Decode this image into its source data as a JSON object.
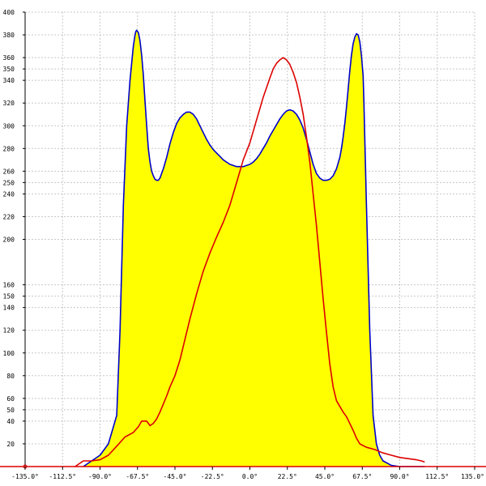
{
  "chart_data": {
    "type": "area",
    "title": "",
    "xlabel": "",
    "ylabel": "",
    "xlim": [
      -135,
      135
    ],
    "ylim": [
      0,
      400
    ],
    "grid": true,
    "legend": "none",
    "x_ticks": [
      {
        "value": -135,
        "label": "-135.0°"
      },
      {
        "value": -112.5,
        "label": "-112.5°"
      },
      {
        "value": -90,
        "label": "-90.0°"
      },
      {
        "value": -67.5,
        "label": "-67.5°"
      },
      {
        "value": -45,
        "label": "-45.0°"
      },
      {
        "value": -22.5,
        "label": "-22.5°"
      },
      {
        "value": 0,
        "label": "0.0°"
      },
      {
        "value": 22.5,
        "label": "22.5°"
      },
      {
        "value": 45,
        "label": "45.0°"
      },
      {
        "value": 67.5,
        "label": "67.5°"
      },
      {
        "value": 90,
        "label": "90.0°"
      },
      {
        "value": 112.5,
        "label": "112.5°"
      },
      {
        "value": 135,
        "label": "135.0°"
      }
    ],
    "y_ticks": [
      {
        "value": 20,
        "label": "20"
      },
      {
        "value": 40,
        "label": "40"
      },
      {
        "value": 50,
        "label": "50"
      },
      {
        "value": 60,
        "label": "60"
      },
      {
        "value": 80,
        "label": "80"
      },
      {
        "value": 100,
        "label": "100"
      },
      {
        "value": 120,
        "label": "120"
      },
      {
        "value": 140,
        "label": "140"
      },
      {
        "value": 150,
        "label": "150"
      },
      {
        "value": 160,
        "label": "160"
      },
      {
        "value": 200,
        "label": "200"
      },
      {
        "value": 220,
        "label": "220"
      },
      {
        "value": 240,
        "label": "240"
      },
      {
        "value": 250,
        "label": "250"
      },
      {
        "value": 260,
        "label": "260"
      },
      {
        "value": 280,
        "label": "280"
      },
      {
        "value": 300,
        "label": "300"
      },
      {
        "value": 320,
        "label": "320"
      },
      {
        "value": 340,
        "label": "340"
      },
      {
        "value": 350,
        "label": "350"
      },
      {
        "value": 360,
        "label": "360"
      },
      {
        "value": 380,
        "label": "380"
      },
      {
        "value": 400,
        "label": "400"
      }
    ],
    "series": [
      {
        "color": "#0000cc",
        "fill": "#ffff00",
        "x": [
          -100,
          -95,
          -90,
          -85,
          -80,
          -78,
          -76,
          -74,
          -72,
          -70,
          -69,
          -68.5,
          -68,
          -67,
          -66,
          -65,
          -64,
          -63,
          -62,
          -61,
          -60,
          -59,
          -58,
          -57,
          -56,
          -55,
          -54,
          -52,
          -50,
          -48,
          -46,
          -44,
          -42,
          -40,
          -38,
          -36,
          -34,
          -32,
          -30,
          -28,
          -26,
          -24,
          -22,
          -20,
          -18,
          -16,
          -14,
          -12,
          -10,
          -8,
          -6,
          -4,
          -2,
          0,
          2,
          4,
          6,
          8,
          10,
          12,
          14,
          16,
          18,
          20,
          22,
          24,
          26,
          28,
          30,
          32,
          34,
          36,
          38,
          40,
          42,
          44,
          46,
          48,
          50,
          52,
          54,
          55,
          56,
          57,
          58,
          59,
          60,
          61,
          62,
          63,
          64,
          65,
          66,
          67,
          68,
          68.5,
          69,
          70,
          72,
          74,
          76,
          78,
          80,
          85,
          90,
          95,
          100,
          105
        ],
        "y": [
          0,
          5,
          10,
          20,
          45,
          120,
          230,
          300,
          340,
          370,
          380,
          383,
          384,
          382,
          375,
          362,
          345,
          322,
          300,
          280,
          268,
          260,
          256,
          253,
          252,
          252,
          254,
          262,
          272,
          284,
          294,
          302,
          307,
          310,
          312,
          312,
          310,
          306,
          300,
          294,
          288,
          283,
          279,
          276,
          273,
          270,
          268,
          266,
          265,
          264,
          264,
          264,
          265,
          266,
          268,
          271,
          275,
          280,
          285,
          291,
          296,
          301,
          306,
          310,
          313,
          314,
          313,
          310,
          305,
          298,
          288,
          277,
          266,
          258,
          254,
          252,
          252,
          253,
          256,
          262,
          272,
          280,
          290,
          302,
          316,
          332,
          348,
          362,
          372,
          378,
          381,
          380,
          374,
          362,
          344,
          320,
          290,
          230,
          120,
          45,
          20,
          10,
          5,
          1,
          0,
          0,
          0,
          0
        ]
      },
      {
        "color": "#dd0000",
        "x": [
          -105,
          -100,
          -95,
          -90,
          -85,
          -80,
          -75,
          -70,
          -67,
          -65,
          -62,
          -60,
          -58,
          -56,
          -54,
          -52,
          -50,
          -48,
          -45,
          -42,
          -40,
          -36,
          -32,
          -28,
          -24,
          -20,
          -16,
          -12,
          -8,
          -4,
          0,
          4,
          8,
          12,
          14,
          16,
          18,
          20,
          22,
          24,
          26,
          28,
          30,
          32,
          34,
          36,
          38,
          40,
          42,
          44,
          46,
          48,
          50,
          52,
          54,
          56,
          58,
          60,
          62,
          64,
          66,
          70,
          75,
          80,
          85,
          90,
          95,
          100,
          103,
          105
        ],
        "y": [
          0,
          5,
          5,
          6,
          10,
          18,
          26,
          30,
          35,
          40,
          40,
          36,
          38,
          42,
          48,
          55,
          62,
          70,
          80,
          94,
          106,
          130,
          152,
          172,
          188,
          202,
          215,
          230,
          250,
          270,
          285,
          305,
          325,
          342,
          350,
          355,
          358,
          360,
          358,
          354,
          347,
          338,
          325,
          310,
          290,
          268,
          240,
          212,
          180,
          148,
          118,
          90,
          70,
          58,
          53,
          48,
          44,
          38,
          32,
          25,
          20,
          17,
          15,
          12,
          10,
          8,
          7,
          6,
          5,
          4
        ]
      }
    ]
  }
}
